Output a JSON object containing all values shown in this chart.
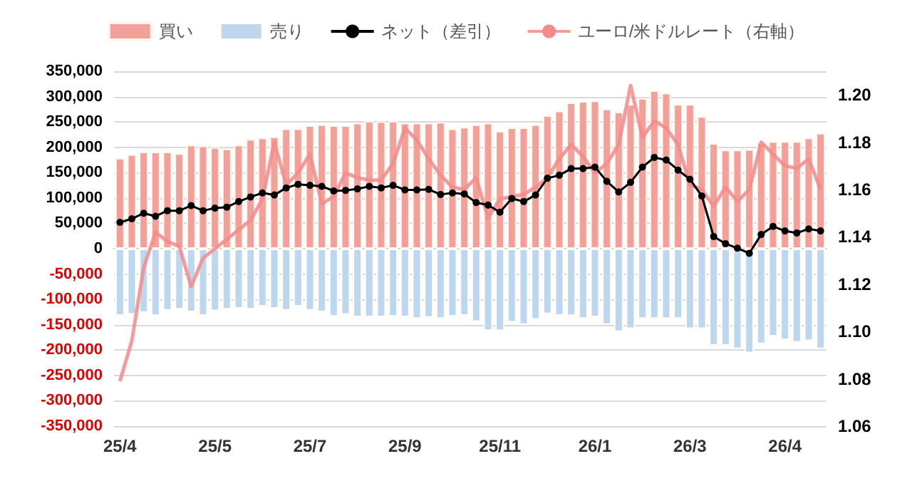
{
  "chart_data": {
    "type": "bar",
    "stacked": true,
    "categories": [
      "25/4",
      null,
      null,
      null,
      null,
      null,
      null,
      null,
      "25/5",
      null,
      null,
      null,
      null,
      null,
      null,
      null,
      "25/7",
      null,
      null,
      null,
      null,
      null,
      null,
      null,
      "25/9",
      null,
      null,
      null,
      null,
      null,
      null,
      null,
      "25/11",
      null,
      null,
      null,
      null,
      null,
      null,
      null,
      "26/1",
      null,
      null,
      null,
      null,
      null,
      null,
      null,
      "26/3",
      null,
      null,
      null,
      null,
      null,
      null,
      null,
      "26/4",
      null,
      null,
      null
    ],
    "series": [
      {
        "name": "買い",
        "color": "#f4a09a",
        "values": [
          179000,
          186000,
          191000,
          191000,
          191000,
          188000,
          205000,
          203000,
          200000,
          197000,
          205000,
          216000,
          219000,
          221000,
          237000,
          237000,
          243000,
          245000,
          243000,
          243000,
          248000,
          252000,
          251000,
          252000,
          248000,
          248000,
          248000,
          250000,
          237000,
          240000,
          245000,
          248000,
          232000,
          239000,
          239000,
          245000,
          263000,
          272000,
          288000,
          291000,
          292000,
          276000,
          270000,
          285000,
          297000,
          312000,
          307000,
          285000,
          285000,
          261000,
          208000,
          195000,
          195000,
          196000,
          210000,
          212000,
          212000,
          212000,
          219000,
          228000
        ]
      },
      {
        "name": "売り",
        "color": "#bdd7ee",
        "values": [
          -132000,
          -130000,
          -126000,
          -132000,
          -122000,
          -120000,
          -125000,
          -132000,
          -123000,
          -120000,
          -118000,
          -120000,
          -114000,
          -118000,
          -122000,
          -114000,
          -122000,
          -125000,
          -134000,
          -130000,
          -135000,
          -135000,
          -135000,
          -134000,
          -135000,
          -138000,
          -136000,
          -138000,
          -134000,
          -132000,
          -144000,
          -162000,
          -162000,
          -145000,
          -150000,
          -140000,
          -129000,
          -132000,
          -132000,
          -138000,
          -135000,
          -150000,
          -164000,
          -158000,
          -138000,
          -138000,
          -138000,
          -138000,
          -158000,
          -158000,
          -191000,
          -191000,
          -198000,
          -206000,
          -188000,
          -173000,
          -180000,
          -185000,
          -182000,
          -198000
        ]
      },
      {
        "name": "ネット（差引）",
        "type": "line",
        "color": "#000000",
        "marker": "circle",
        "values": [
          52000,
          59000,
          70000,
          64000,
          75000,
          75000,
          85000,
          75000,
          80000,
          82000,
          93000,
          102000,
          110000,
          106000,
          120000,
          127000,
          125000,
          123000,
          114000,
          115000,
          118000,
          123000,
          120000,
          125000,
          116000,
          116000,
          117000,
          107000,
          110000,
          108000,
          91000,
          86000,
          72000,
          99000,
          93000,
          106000,
          139000,
          145000,
          158000,
          158000,
          161000,
          133000,
          112000,
          131000,
          161000,
          180000,
          175000,
          155000,
          137000,
          104000,
          24000,
          10000,
          1000,
          -9000,
          28000,
          44000,
          35000,
          31000,
          39000,
          35000
        ]
      },
      {
        "name": "ユーロ/米ドルレート（右軸）",
        "type": "line",
        "axis": "y2",
        "color": "#f28b8b",
        "marker": "none",
        "values": [
          1.079,
          1.096,
          1.127,
          1.142,
          1.138,
          1.136,
          1.119,
          1.131,
          1.135,
          1.139,
          1.143,
          1.147,
          1.156,
          1.18,
          1.162,
          1.167,
          1.175,
          1.154,
          1.157,
          1.167,
          1.165,
          1.164,
          1.164,
          1.171,
          1.186,
          1.181,
          1.173,
          1.166,
          1.161,
          1.16,
          1.165,
          1.148,
          1.156,
          1.157,
          1.158,
          1.161,
          1.165,
          1.173,
          1.179,
          1.174,
          1.167,
          1.171,
          1.179,
          1.204,
          1.182,
          1.189,
          1.186,
          1.179,
          1.162,
          1.16,
          1.153,
          1.161,
          1.155,
          1.16,
          1.18,
          1.175,
          1.17,
          1.169,
          1.173,
          1.16
        ]
      }
    ],
    "ylim": [
      -350000,
      350000
    ],
    "yticks": [
      {
        "value": -350000,
        "label": "-350,000"
      },
      {
        "value": -300000,
        "label": "-300,000"
      },
      {
        "value": -250000,
        "label": "-250,000"
      },
      {
        "value": -200000,
        "label": "-200,000"
      },
      {
        "value": -150000,
        "label": "-150,000"
      },
      {
        "value": -100000,
        "label": "-100,000"
      },
      {
        "value": -50000,
        "label": "-50,000"
      },
      0,
      {
        "value": 50000,
        "label": "50,000"
      },
      {
        "value": 100000,
        "label": "100,000"
      },
      {
        "value": 150000,
        "label": "150,000"
      },
      {
        "value": 200000,
        "label": "200,000"
      },
      {
        "value": 250000,
        "label": "250,000"
      },
      {
        "value": 300000,
        "label": "300,000"
      },
      {
        "value": 350000,
        "label": "350,000"
      }
    ],
    "y2lim": [
      1.06,
      1.21
    ],
    "y2ticks": [
      1.06,
      1.08,
      {
        "value": 1.1,
        "label": "1.10"
      },
      1.12,
      1.14,
      1.16,
      1.18,
      {
        "value": 1.2,
        "label": "1.20"
      }
    ],
    "grid": "y",
    "legend": "top"
  }
}
